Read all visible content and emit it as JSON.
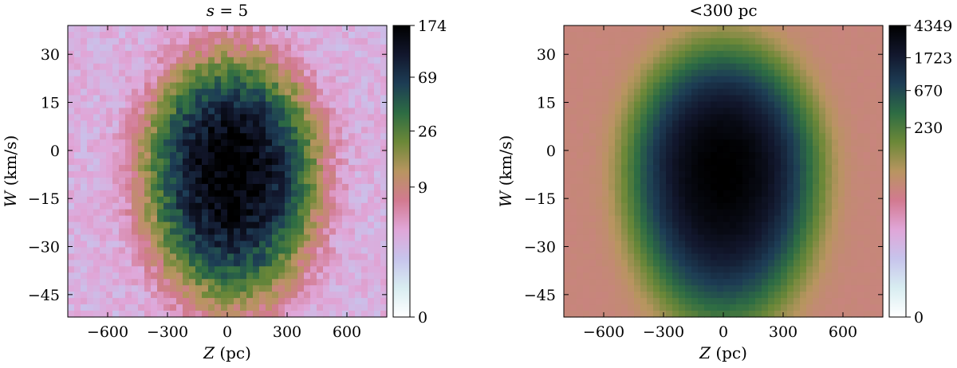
{
  "figure": {
    "cmap_stops": [
      "#ffffff",
      "#d8edf1",
      "#c7c4ec",
      "#e0a6d8",
      "#d27a90",
      "#b89560",
      "#6c8838",
      "#2d6c43",
      "#1d3d55",
      "#12172d",
      "#000000"
    ]
  },
  "chart_data": [
    {
      "type": "heatmap",
      "title": "s = 5",
      "title_symbol": "s",
      "title_rest": " = 5",
      "xlabel": "Z (pc)",
      "xlabel_symbol": "Z",
      "xlabel_unit": " (pc)",
      "ylabel": "W (km/s)",
      "ylabel_symbol": "W",
      "ylabel_unit": " (km/s)",
      "xlim": [
        -800,
        800
      ],
      "ylim": [
        -52,
        39
      ],
      "xticks": [
        -600,
        -300,
        0,
        300,
        600
      ],
      "xtick_labels": [
        "−600",
        "−300",
        "0",
        "300",
        "600"
      ],
      "yticks": [
        30,
        15,
        0,
        -15,
        -30,
        -45
      ],
      "ytick_labels": [
        "30",
        "15",
        "0",
        "−15",
        "−30",
        "−45"
      ],
      "colorbar": {
        "scale": "log",
        "max": 174,
        "ticks": [
          174,
          69,
          26,
          9,
          0
        ],
        "tick_labels": [
          "174",
          "69",
          "26",
          "9",
          "0"
        ]
      },
      "distribution": {
        "peak": 174,
        "center_z": 20,
        "center_w": -6,
        "sigma_z": 210,
        "sigma_w_up": 17,
        "sigma_w_down": 20,
        "noise": 0.35,
        "background": 3
      }
    },
    {
      "type": "heatmap",
      "title": "<300 pc",
      "xlabel": "Z (pc)",
      "xlabel_symbol": "Z",
      "xlabel_unit": " (pc)",
      "ylabel": "W (km/s)",
      "ylabel_symbol": "W",
      "ylabel_unit": " (km/s)",
      "xlim": [
        -800,
        800
      ],
      "ylim": [
        -52,
        39
      ],
      "xticks": [
        -600,
        -300,
        0,
        300,
        600
      ],
      "xtick_labels": [
        "−600",
        "−300",
        "0",
        "300",
        "600"
      ],
      "yticks": [
        30,
        15,
        0,
        -15,
        -30,
        -45
      ],
      "ytick_labels": [
        "30",
        "15",
        "0",
        "−15",
        "−30",
        "−45"
      ],
      "colorbar": {
        "scale": "log",
        "max": 4349,
        "ticks": [
          4349,
          1723,
          670,
          230,
          0
        ],
        "tick_labels": [
          "4349",
          "1723",
          "670",
          "230",
          "0"
        ]
      },
      "distribution": {
        "peak": 4349,
        "center_z": 0,
        "center_w": -6,
        "sigma_z": 210,
        "sigma_w_up": 17,
        "sigma_w_down": 21,
        "noise": 0.05,
        "background": 40
      }
    }
  ]
}
